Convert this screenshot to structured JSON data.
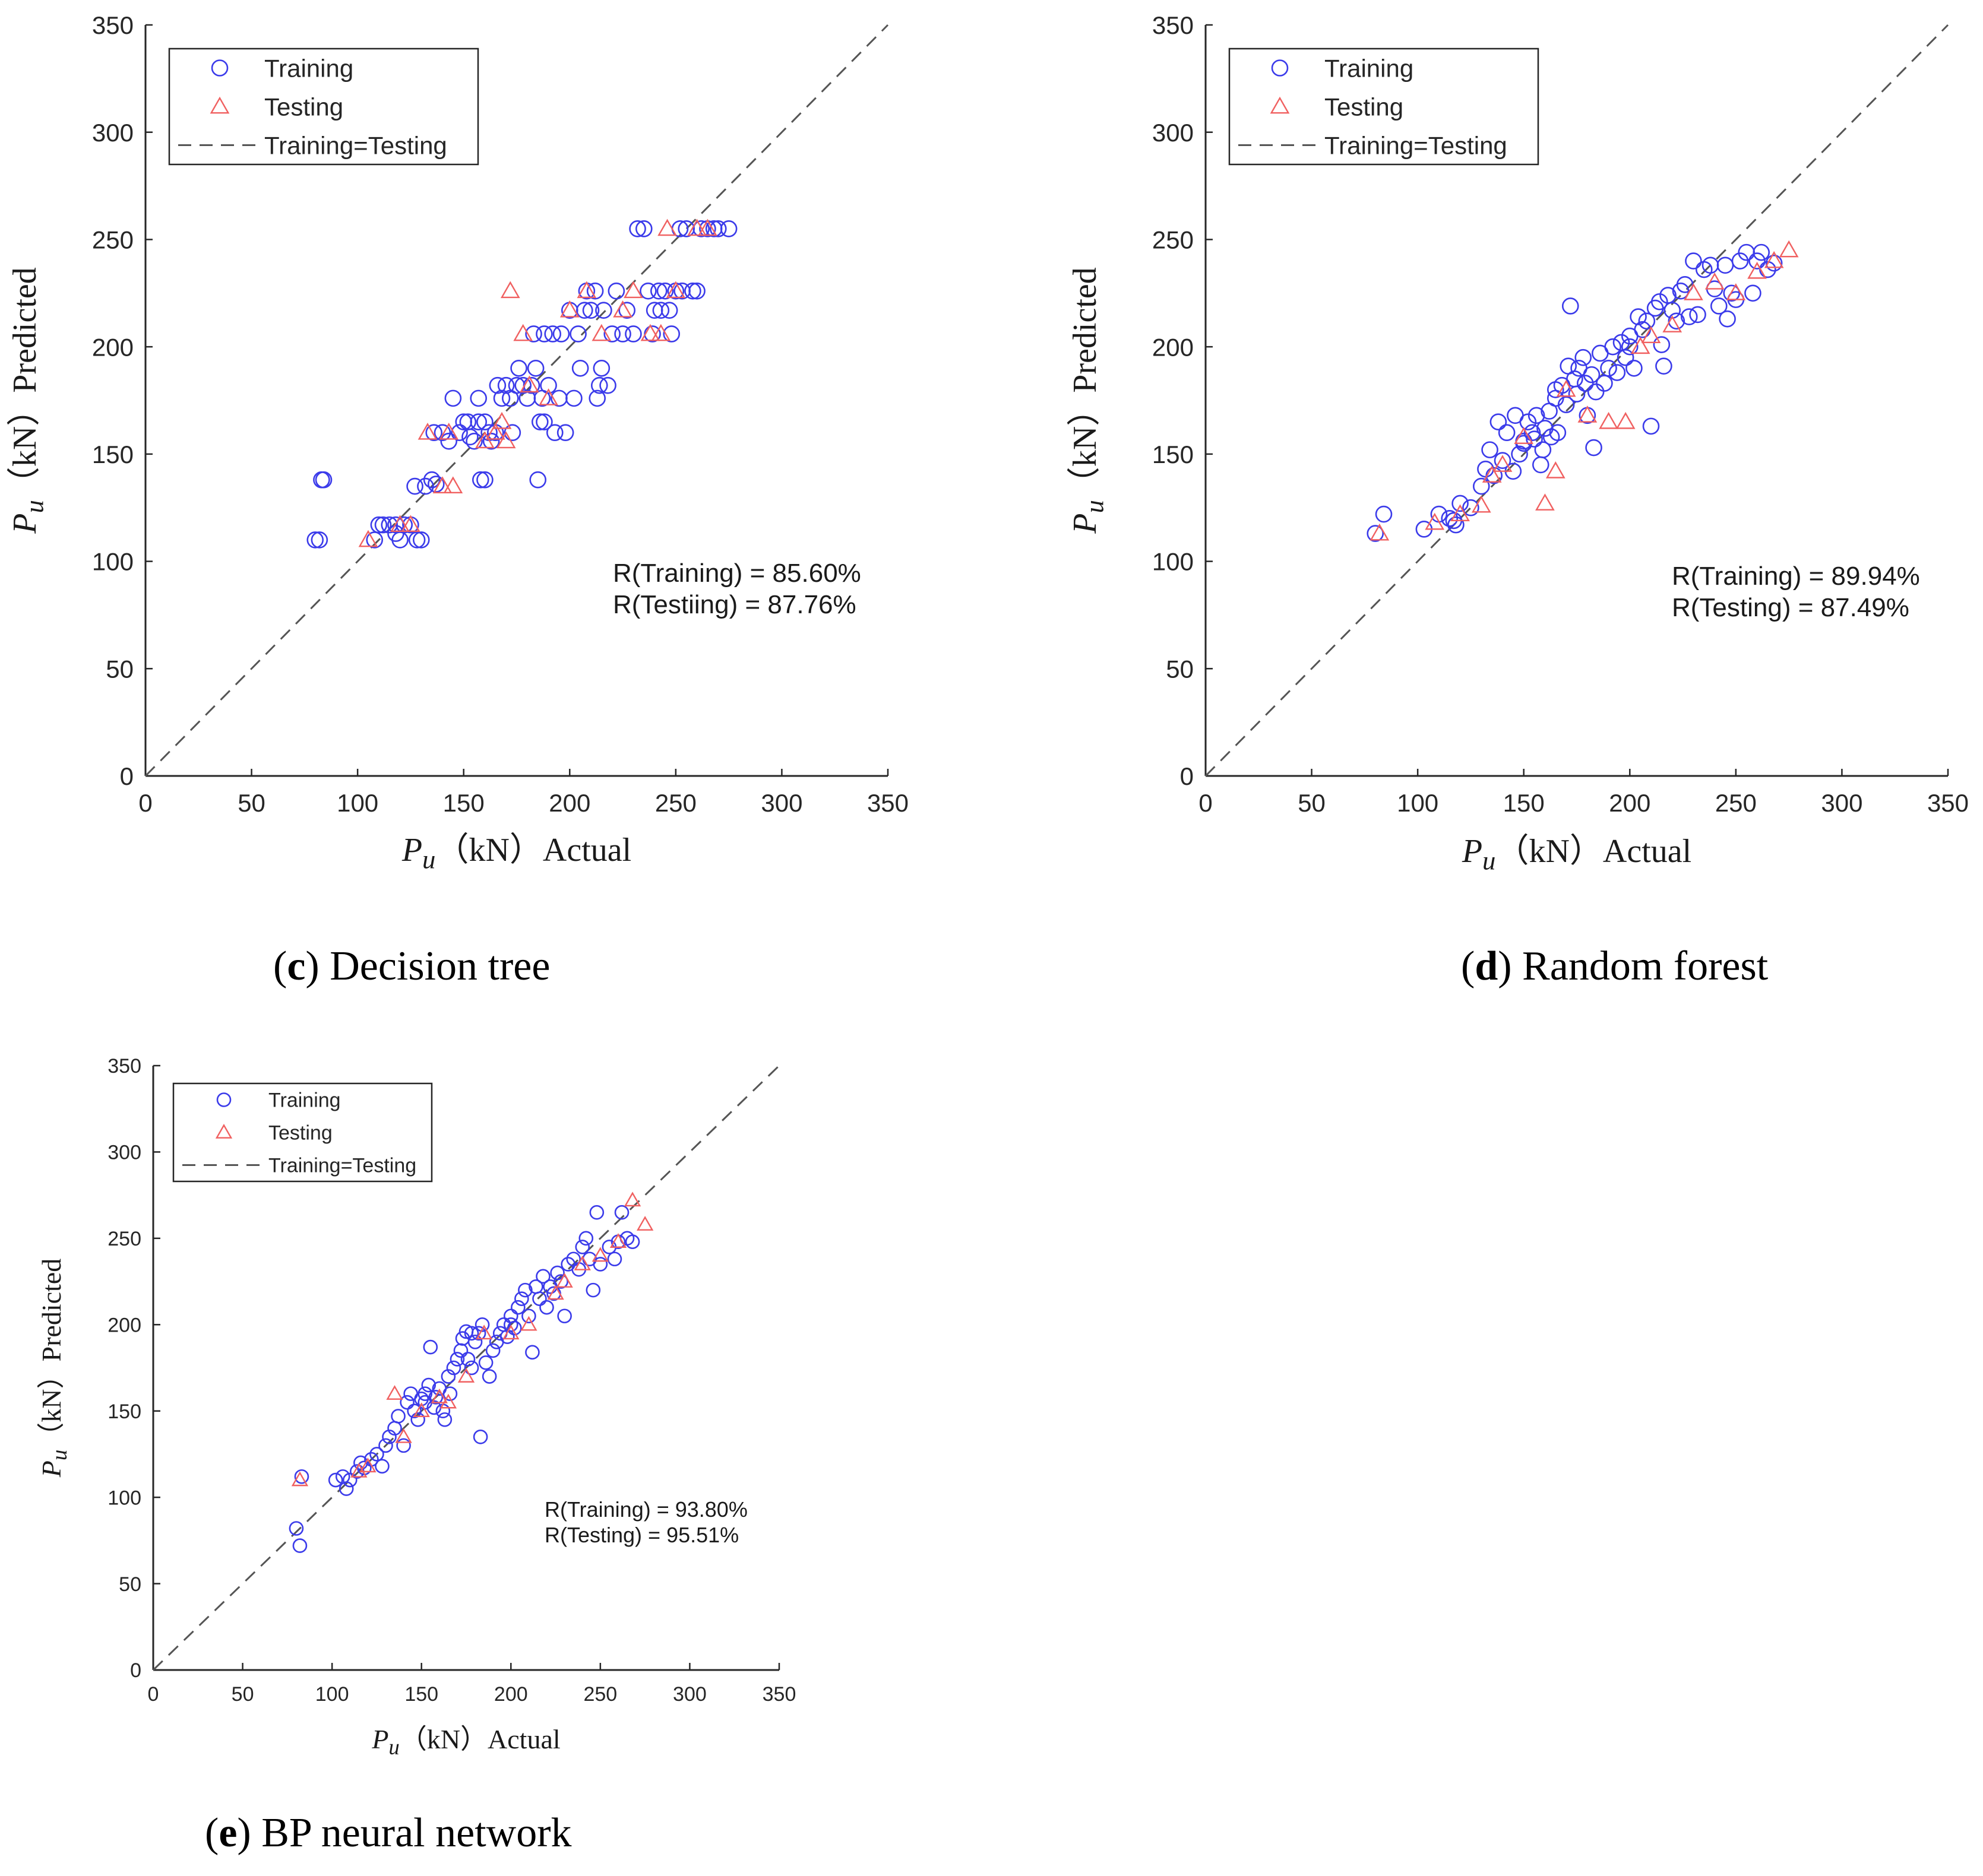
{
  "colors": {
    "training": "#3b3bea",
    "testing": "#f06060",
    "diagonal": "#555555",
    "axis": "#262626"
  },
  "chart_data": [
    {
      "id": "c",
      "type": "scatter",
      "caption_letter": "c",
      "caption_text": ") Decision tree",
      "xlabel_sym": "P",
      "xlabel_sub": "u",
      "xlabel_text": "（kN）Actual",
      "ylabel_sym": "P",
      "ylabel_sub": "u",
      "ylabel_text": "（kN）Predicted",
      "xlim": [
        0,
        350
      ],
      "ylim": [
        0,
        350
      ],
      "xticks": [
        "0",
        "50",
        "100",
        "150",
        "200",
        "250",
        "300",
        "350"
      ],
      "yticks": [
        "0",
        "50",
        "100",
        "150",
        "200",
        "250",
        "300",
        "350"
      ],
      "legend": [
        "Training",
        "Testing",
        "Training=Testing"
      ],
      "annotation": [
        "R(Training) = 85.60%",
        "R(Testiing) = 87.76%"
      ],
      "training": [
        [
          80,
          110
        ],
        [
          82,
          110
        ],
        [
          83,
          138
        ],
        [
          84,
          138
        ],
        [
          108,
          110
        ],
        [
          110,
          117
        ],
        [
          112,
          117
        ],
        [
          115,
          117
        ],
        [
          118,
          113
        ],
        [
          120,
          110
        ],
        [
          122,
          117
        ],
        [
          125,
          117
        ],
        [
          128,
          110
        ],
        [
          127,
          135
        ],
        [
          132,
          135
        ],
        [
          135,
          138
        ],
        [
          137,
          136
        ],
        [
          136,
          160
        ],
        [
          140,
          160
        ],
        [
          143,
          156
        ],
        [
          145,
          176
        ],
        [
          148,
          160
        ],
        [
          150,
          165
        ],
        [
          152,
          165
        ],
        [
          153,
          158
        ],
        [
          155,
          156
        ],
        [
          157,
          176
        ],
        [
          158,
          138
        ],
        [
          160,
          138
        ],
        [
          162,
          160
        ],
        [
          160,
          165
        ],
        [
          163,
          156
        ],
        [
          165,
          160
        ],
        [
          166,
          182
        ],
        [
          168,
          176
        ],
        [
          170,
          182
        ],
        [
          172,
          176
        ],
        [
          173,
          160
        ],
        [
          175,
          182
        ],
        [
          176,
          190
        ],
        [
          178,
          182
        ],
        [
          180,
          176
        ],
        [
          182,
          182
        ],
        [
          183,
          206
        ],
        [
          184,
          190
        ],
        [
          185,
          138
        ],
        [
          186,
          165
        ],
        [
          187,
          176
        ],
        [
          188,
          206
        ],
        [
          190,
          182
        ],
        [
          192,
          206
        ],
        [
          193,
          160
        ],
        [
          195,
          176
        ],
        [
          196,
          206
        ],
        [
          198,
          160
        ],
        [
          200,
          217
        ],
        [
          202,
          176
        ],
        [
          204,
          206
        ],
        [
          205,
          190
        ],
        [
          207,
          217
        ],
        [
          208,
          226
        ],
        [
          210,
          217
        ],
        [
          212,
          226
        ],
        [
          213,
          176
        ],
        [
          214,
          182
        ],
        [
          215,
          190
        ],
        [
          216,
          217
        ],
        [
          218,
          182
        ],
        [
          220,
          206
        ],
        [
          222,
          226
        ],
        [
          225,
          206
        ],
        [
          227,
          217
        ],
        [
          230,
          206
        ],
        [
          232,
          255
        ],
        [
          235,
          255
        ],
        [
          237,
          226
        ],
        [
          239,
          206
        ],
        [
          240,
          217
        ],
        [
          242,
          226
        ],
        [
          243,
          217
        ],
        [
          245,
          226
        ],
        [
          247,
          217
        ],
        [
          248,
          206
        ],
        [
          250,
          226
        ],
        [
          252,
          255
        ],
        [
          253,
          226
        ],
        [
          255,
          255
        ],
        [
          258,
          226
        ],
        [
          260,
          226
        ],
        [
          262,
          255
        ],
        [
          265,
          255
        ],
        [
          268,
          255
        ],
        [
          270,
          255
        ],
        [
          275,
          255
        ],
        [
          130,
          110
        ],
        [
          118,
          117
        ],
        [
          188,
          165
        ],
        [
          157,
          165
        ]
      ],
      "testing": [
        [
          105,
          110
        ],
        [
          120,
          117
        ],
        [
          125,
          117
        ],
        [
          133,
          160
        ],
        [
          140,
          135
        ],
        [
          145,
          135
        ],
        [
          143,
          160
        ],
        [
          160,
          156
        ],
        [
          165,
          160
        ],
        [
          168,
          165
        ],
        [
          170,
          156
        ],
        [
          172,
          226
        ],
        [
          178,
          206
        ],
        [
          181,
          182
        ],
        [
          190,
          176
        ],
        [
          200,
          217
        ],
        [
          208,
          226
        ],
        [
          215,
          206
        ],
        [
          225,
          217
        ],
        [
          230,
          226
        ],
        [
          238,
          206
        ],
        [
          243,
          206
        ],
        [
          246,
          255
        ],
        [
          250,
          226
        ],
        [
          260,
          255
        ],
        [
          265,
          255
        ]
      ]
    },
    {
      "id": "d",
      "type": "scatter",
      "caption_letter": "d",
      "caption_text": ") Random forest",
      "xlabel_sym": "P",
      "xlabel_sub": "u",
      "xlabel_text": "（kN）Actual",
      "ylabel_sym": "P",
      "ylabel_sub": "u",
      "ylabel_text": "（kN）Predicted",
      "xlim": [
        0,
        350
      ],
      "ylim": [
        0,
        350
      ],
      "xticks": [
        "0",
        "50",
        "100",
        "150",
        "200",
        "250",
        "300",
        "350"
      ],
      "yticks": [
        "0",
        "50",
        "100",
        "150",
        "200",
        "250",
        "300",
        "350"
      ],
      "legend": [
        "Training",
        "Testing",
        "Training=Testing"
      ],
      "annotation": [
        "R(Training) = 89.94%",
        "R(Testing) = 87.49%"
      ],
      "training": [
        [
          80,
          113
        ],
        [
          84,
          122
        ],
        [
          103,
          115
        ],
        [
          110,
          122
        ],
        [
          115,
          120
        ],
        [
          118,
          117
        ],
        [
          120,
          127
        ],
        [
          125,
          125
        ],
        [
          130,
          135
        ],
        [
          132,
          143
        ],
        [
          134,
          152
        ],
        [
          136,
          140
        ],
        [
          138,
          165
        ],
        [
          140,
          147
        ],
        [
          142,
          160
        ],
        [
          145,
          142
        ],
        [
          146,
          168
        ],
        [
          148,
          150
        ],
        [
          150,
          155
        ],
        [
          152,
          165
        ],
        [
          154,
          160
        ],
        [
          155,
          157
        ],
        [
          156,
          168
        ],
        [
          158,
          145
        ],
        [
          159,
          152
        ],
        [
          160,
          162
        ],
        [
          162,
          170
        ],
        [
          163,
          158
        ],
        [
          165,
          176
        ],
        [
          166,
          160
        ],
        [
          168,
          182
        ],
        [
          170,
          173
        ],
        [
          171,
          191
        ],
        [
          172,
          219
        ],
        [
          174,
          185
        ],
        [
          175,
          178
        ],
        [
          176,
          190
        ],
        [
          178,
          195
        ],
        [
          179,
          183
        ],
        [
          180,
          168
        ],
        [
          182,
          187
        ],
        [
          183,
          153
        ],
        [
          184,
          179
        ],
        [
          186,
          197
        ],
        [
          188,
          183
        ],
        [
          190,
          190
        ],
        [
          192,
          200
        ],
        [
          194,
          188
        ],
        [
          196,
          202
        ],
        [
          198,
          195
        ],
        [
          200,
          205
        ],
        [
          202,
          190
        ],
        [
          204,
          214
        ],
        [
          206,
          208
        ],
        [
          208,
          212
        ],
        [
          210,
          163
        ],
        [
          212,
          218
        ],
        [
          214,
          221
        ],
        [
          215,
          201
        ],
        [
          216,
          191
        ],
        [
          218,
          224
        ],
        [
          220,
          217
        ],
        [
          222,
          212
        ],
        [
          224,
          226
        ],
        [
          226,
          229
        ],
        [
          228,
          214
        ],
        [
          230,
          240
        ],
        [
          232,
          215
        ],
        [
          235,
          236
        ],
        [
          238,
          238
        ],
        [
          240,
          227
        ],
        [
          242,
          219
        ],
        [
          245,
          238
        ],
        [
          246,
          213
        ],
        [
          248,
          225
        ],
        [
          250,
          222
        ],
        [
          252,
          240
        ],
        [
          255,
          244
        ],
        [
          258,
          225
        ],
        [
          260,
          240
        ],
        [
          262,
          244
        ],
        [
          265,
          236
        ],
        [
          268,
          239
        ],
        [
          117,
          119
        ],
        [
          150,
          156
        ],
        [
          165,
          180
        ],
        [
          200,
          200
        ]
      ],
      "testing": [
        [
          82,
          113
        ],
        [
          108,
          118
        ],
        [
          120,
          122
        ],
        [
          130,
          126
        ],
        [
          135,
          140
        ],
        [
          140,
          145
        ],
        [
          150,
          158
        ],
        [
          160,
          127
        ],
        [
          165,
          142
        ],
        [
          170,
          180
        ],
        [
          180,
          168
        ],
        [
          190,
          165
        ],
        [
          198,
          165
        ],
        [
          205,
          200
        ],
        [
          210,
          205
        ],
        [
          220,
          210
        ],
        [
          230,
          225
        ],
        [
          240,
          230
        ],
        [
          250,
          225
        ],
        [
          260,
          235
        ],
        [
          268,
          240
        ],
        [
          275,
          245
        ]
      ]
    },
    {
      "id": "e",
      "type": "scatter",
      "caption_letter": "e",
      "caption_text": ") BP neural network",
      "xlabel_sym": "P",
      "xlabel_sub": "u",
      "xlabel_text": "（kN）Actual",
      "ylabel_sym": "P",
      "ylabel_sub": "u",
      "ylabel_text": "（kN）Predicted",
      "xlim": [
        0,
        350
      ],
      "ylim": [
        0,
        350
      ],
      "xticks": [
        "0",
        "50",
        "100",
        "150",
        "200",
        "250",
        "300",
        "350"
      ],
      "yticks": [
        "0",
        "50",
        "100",
        "150",
        "200",
        "250",
        "300",
        "350"
      ],
      "legend": [
        "Training",
        "Testing",
        "Training=Testing"
      ],
      "annotation": [
        "R(Training) = 93.80%",
        "R(Testing) = 95.51%"
      ],
      "training": [
        [
          80,
          82
        ],
        [
          82,
          72
        ],
        [
          83,
          112
        ],
        [
          102,
          110
        ],
        [
          106,
          112
        ],
        [
          108,
          105
        ],
        [
          110,
          110
        ],
        [
          114,
          115
        ],
        [
          116,
          120
        ],
        [
          118,
          117
        ],
        [
          122,
          122
        ],
        [
          125,
          125
        ],
        [
          128,
          118
        ],
        [
          130,
          130
        ],
        [
          132,
          135
        ],
        [
          135,
          140
        ],
        [
          137,
          147
        ],
        [
          140,
          130
        ],
        [
          142,
          155
        ],
        [
          144,
          160
        ],
        [
          146,
          150
        ],
        [
          148,
          145
        ],
        [
          150,
          157
        ],
        [
          152,
          160
        ],
        [
          154,
          165
        ],
        [
          155,
          187
        ],
        [
          157,
          152
        ],
        [
          158,
          158
        ],
        [
          160,
          163
        ],
        [
          162,
          150
        ],
        [
          163,
          145
        ],
        [
          165,
          170
        ],
        [
          166,
          160
        ],
        [
          168,
          175
        ],
        [
          170,
          180
        ],
        [
          172,
          185
        ],
        [
          173,
          192
        ],
        [
          175,
          196
        ],
        [
          176,
          180
        ],
        [
          178,
          175
        ],
        [
          180,
          190
        ],
        [
          182,
          195
        ],
        [
          183,
          135
        ],
        [
          184,
          200
        ],
        [
          186,
          178
        ],
        [
          188,
          170
        ],
        [
          190,
          185
        ],
        [
          192,
          190
        ],
        [
          194,
          195
        ],
        [
          196,
          200
        ],
        [
          198,
          193
        ],
        [
          200,
          205
        ],
        [
          202,
          198
        ],
        [
          204,
          210
        ],
        [
          206,
          215
        ],
        [
          208,
          220
        ],
        [
          210,
          205
        ],
        [
          212,
          184
        ],
        [
          214,
          222
        ],
        [
          216,
          215
        ],
        [
          218,
          228
        ],
        [
          220,
          210
        ],
        [
          222,
          222
        ],
        [
          224,
          218
        ],
        [
          226,
          230
        ],
        [
          228,
          225
        ],
        [
          230,
          205
        ],
        [
          232,
          235
        ],
        [
          235,
          238
        ],
        [
          238,
          232
        ],
        [
          240,
          245
        ],
        [
          242,
          250
        ],
        [
          244,
          238
        ],
        [
          246,
          220
        ],
        [
          248,
          265
        ],
        [
          250,
          235
        ],
        [
          255,
          245
        ],
        [
          258,
          238
        ],
        [
          260,
          248
        ],
        [
          262,
          265
        ],
        [
          265,
          250
        ],
        [
          268,
          248
        ],
        [
          152,
          155
        ],
        [
          178,
          195
        ],
        [
          200,
          200
        ]
      ],
      "testing": [
        [
          82,
          110
        ],
        [
          115,
          115
        ],
        [
          120,
          118
        ],
        [
          135,
          160
        ],
        [
          140,
          135
        ],
        [
          150,
          150
        ],
        [
          160,
          158
        ],
        [
          165,
          155
        ],
        [
          175,
          170
        ],
        [
          185,
          195
        ],
        [
          200,
          195
        ],
        [
          210,
          200
        ],
        [
          225,
          218
        ],
        [
          230,
          225
        ],
        [
          240,
          235
        ],
        [
          250,
          240
        ],
        [
          260,
          248
        ],
        [
          268,
          272
        ],
        [
          275,
          258
        ]
      ]
    }
  ]
}
